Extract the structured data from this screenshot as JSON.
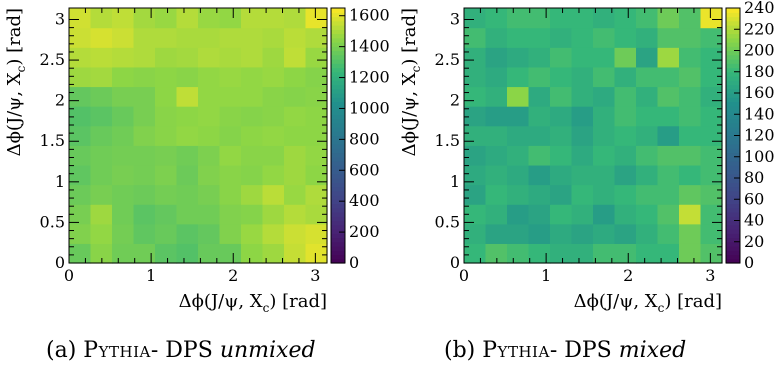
{
  "chart_data": [
    {
      "type": "heatmap",
      "caption": {
        "prefix": "(a)",
        "generator": "Pythia",
        "middle": "- DPS",
        "mode": "unmixed"
      },
      "xlabel": "Δϕ(J/ψ, X",
      "xlabel_sub": "c",
      "xlabel_tail": ") [rad]",
      "ylabel": "Δϕ(J/ψ, X",
      "ylabel_sub": "c",
      "ylabel_tail": ") [rad]",
      "xlim": [
        0,
        3.1416
      ],
      "ylim": [
        0,
        3.1416
      ],
      "xticks": [
        "0",
        "1",
        "2",
        "3"
      ],
      "yticks": [
        "0",
        "0.5",
        "1",
        "1.5",
        "2",
        "2.5",
        "3"
      ],
      "zlim": [
        0,
        1650
      ],
      "zticks": [
        "0",
        "200",
        "400",
        "600",
        "800",
        "1000",
        "1200",
        "1400",
        "1600"
      ],
      "zvalues": [
        0,
        200,
        400,
        600,
        800,
        1000,
        1200,
        1400,
        1600
      ],
      "colormap": "viridis",
      "grid": false,
      "nx": 12,
      "ny": 12,
      "z": [
        [
          1360,
          1440,
          1380,
          1380,
          1330,
          1310,
          1360,
          1360,
          1450,
          1480,
          1550,
          1600
        ],
        [
          1420,
          1460,
          1390,
          1340,
          1360,
          1330,
          1350,
          1420,
          1470,
          1520,
          1560,
          1580
        ],
        [
          1400,
          1480,
          1380,
          1330,
          1350,
          1380,
          1380,
          1420,
          1430,
          1480,
          1520,
          1500
        ],
        [
          1370,
          1400,
          1380,
          1370,
          1390,
          1380,
          1400,
          1440,
          1480,
          1530,
          1470,
          1510
        ],
        [
          1340,
          1380,
          1400,
          1390,
          1410,
          1370,
          1420,
          1440,
          1430,
          1460,
          1480,
          1450
        ],
        [
          1360,
          1380,
          1390,
          1390,
          1400,
          1380,
          1410,
          1460,
          1440,
          1440,
          1480,
          1460
        ],
        [
          1330,
          1360,
          1380,
          1420,
          1440,
          1460,
          1450,
          1430,
          1450,
          1460,
          1450,
          1450
        ],
        [
          1310,
          1330,
          1360,
          1400,
          1440,
          1450,
          1460,
          1440,
          1430,
          1440,
          1460,
          1450
        ],
        [
          1350,
          1370,
          1400,
          1400,
          1450,
          1540,
          1460,
          1460,
          1460,
          1440,
          1430,
          1440
        ],
        [
          1480,
          1490,
          1450,
          1440,
          1450,
          1440,
          1460,
          1470,
          1460,
          1470,
          1450,
          1430
        ],
        [
          1520,
          1530,
          1520,
          1510,
          1480,
          1490,
          1510,
          1500,
          1510,
          1480,
          1540,
          1470
        ],
        [
          1560,
          1580,
          1560,
          1510,
          1510,
          1500,
          1500,
          1510,
          1510,
          1500,
          1530,
          1510
        ]
      ],
      "z_extra_top": [
        1570,
        1520,
        1540,
        1490,
        1470,
        1520,
        1470,
        1460,
        1520,
        1520,
        1510,
        1610
      ]
    },
    {
      "type": "heatmap",
      "caption": {
        "prefix": "(b)",
        "generator": "Pythia",
        "middle": "- DPS",
        "mode": "mixed"
      },
      "xlabel": "Δϕ(J/ψ, X",
      "xlabel_sub": "c",
      "xlabel_tail": ") [rad]",
      "ylabel": "Δϕ(J/ψ, X",
      "ylabel_sub": "c",
      "ylabel_tail": ") [rad]",
      "xlim": [
        0,
        3.1416
      ],
      "ylim": [
        0,
        3.1416
      ],
      "xticks": [
        "0",
        "1",
        "2",
        "3"
      ],
      "yticks": [
        "0",
        "0.5",
        "1",
        "1.5",
        "2",
        "2.5",
        "3"
      ],
      "zlim": [
        0,
        240
      ],
      "zticks": [
        "0",
        "20",
        "40",
        "60",
        "80",
        "100",
        "120",
        "140",
        "160",
        "180",
        "200",
        "220",
        "240"
      ],
      "zvalues": [
        0,
        20,
        40,
        60,
        80,
        100,
        120,
        140,
        160,
        180,
        200,
        220,
        240
      ],
      "colormap": "viridis",
      "grid": false,
      "nx": 12,
      "ny": 12,
      "z": [
        [
          180,
          190,
          185,
          180,
          175,
          175,
          185,
          185,
          180,
          180,
          200,
          190
        ],
        [
          175,
          165,
          165,
          160,
          170,
          165,
          170,
          165,
          175,
          185,
          200,
          185
        ],
        [
          180,
          175,
          160,
          165,
          180,
          175,
          160,
          175,
          180,
          190,
          225,
          185
        ],
        [
          165,
          180,
          175,
          170,
          165,
          180,
          175,
          180,
          185,
          185,
          195,
          190
        ],
        [
          170,
          175,
          170,
          160,
          170,
          175,
          175,
          165,
          175,
          185,
          180,
          185
        ],
        [
          165,
          170,
          175,
          185,
          180,
          170,
          180,
          175,
          185,
          190,
          190,
          185
        ],
        [
          175,
          175,
          170,
          170,
          175,
          165,
          175,
          180,
          175,
          160,
          180,
          180
        ],
        [
          165,
          160,
          160,
          175,
          170,
          160,
          175,
          185,
          180,
          180,
          185,
          180
        ],
        [
          180,
          175,
          210,
          170,
          185,
          175,
          170,
          185,
          175,
          190,
          185,
          175
        ],
        [
          175,
          170,
          180,
          185,
          180,
          175,
          185,
          175,
          185,
          185,
          190,
          180
        ],
        [
          175,
          165,
          170,
          175,
          185,
          180,
          180,
          200,
          165,
          215,
          185,
          180
        ],
        [
          185,
          175,
          180,
          180,
          175,
          180,
          185,
          180,
          175,
          190,
          190,
          185
        ]
      ],
      "z_extra_top": [
        175,
        180,
        185,
        185,
        180,
        180,
        175,
        180,
        185,
        200,
        190,
        235
      ]
    }
  ]
}
